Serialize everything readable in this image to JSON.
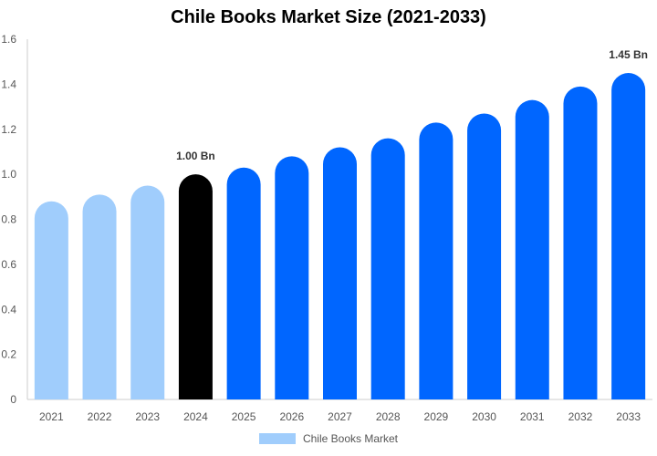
{
  "title": "Chile Books Market Size (2021-2033)",
  "legend": {
    "label": "Chile Books Market",
    "color": "#a0cdfc"
  },
  "colors": {
    "historical": "#a0cdfc",
    "base_year": "#000000",
    "forecast": "#0066ff",
    "axis": "#cccccc"
  },
  "chart_data": {
    "type": "bar",
    "title": "Chile Books Market Size (2021-2033)",
    "categories": [
      "2021",
      "2022",
      "2023",
      "2024",
      "2025",
      "2026",
      "2027",
      "2028",
      "2029",
      "2030",
      "2031",
      "2032",
      "2033"
    ],
    "series": [
      {
        "name": "Chile Books Market",
        "values": [
          0.88,
          0.91,
          0.95,
          1.0,
          1.03,
          1.08,
          1.12,
          1.16,
          1.23,
          1.27,
          1.33,
          1.39,
          1.45
        ]
      }
    ],
    "bar_types": [
      "historical",
      "historical",
      "historical",
      "base_year",
      "forecast",
      "forecast",
      "forecast",
      "forecast",
      "forecast",
      "forecast",
      "forecast",
      "forecast",
      "forecast"
    ],
    "data_labels": [
      {
        "category": "2024",
        "text": "1.00 Bn"
      },
      {
        "category": "2033",
        "text": "1.45 Bn"
      }
    ],
    "yticks": [
      "0",
      "0.2",
      "0.4",
      "0.6",
      "0.8",
      "1.0",
      "1.2",
      "1.4",
      "1.6"
    ],
    "ylim": [
      0,
      1.6
    ],
    "xlabel": "",
    "ylabel": "",
    "grid": false,
    "legend_position": "bottom"
  }
}
